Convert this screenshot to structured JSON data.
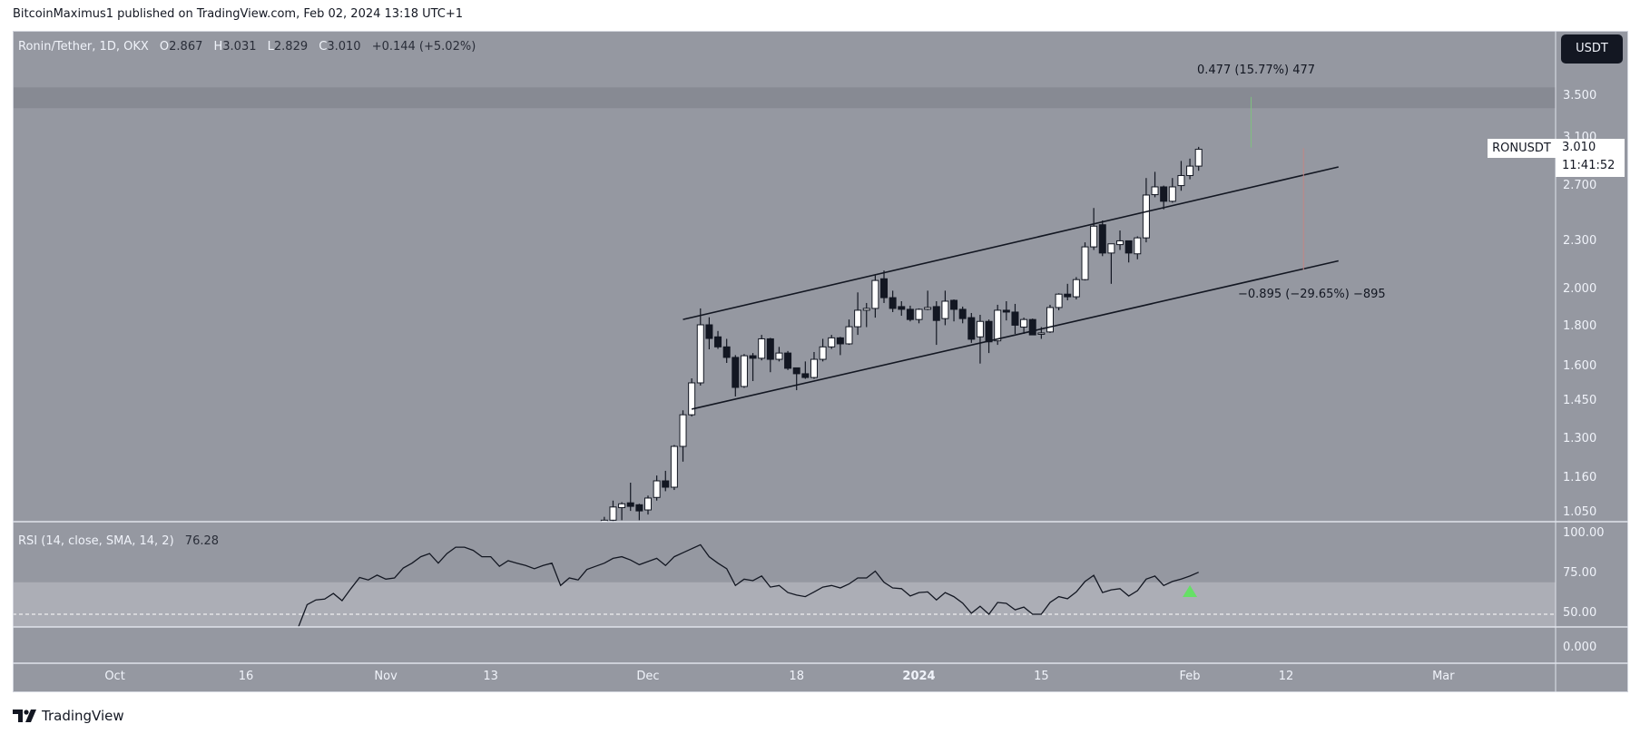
{
  "header": {
    "published": "BitcoinMaximus1 published on TradingView.com, Feb 02, 2024 13:18 UTC+1"
  },
  "legend": {
    "symbol": "Ronin/Tether, 1D, OKX",
    "o_label": "O",
    "o": "2.867",
    "h_label": "H",
    "h": "3.031",
    "l_label": "L",
    "l": "2.829",
    "c_label": "C",
    "c": "3.010",
    "change": "+0.144 (+5.02%)"
  },
  "currency_button": "USDT",
  "symbol_tag": {
    "name": "RONUSDT",
    "price": "3.010",
    "countdown": "11:41:52"
  },
  "measures": {
    "up_text": "0.477 (15.77%) 477",
    "down_text": "−0.895 (−29.65%) −895"
  },
  "rsi_legend": {
    "label": "RSI (14, close, SMA, 14, 2)",
    "value": "76.28"
  },
  "footer": {
    "brand": "TradingView"
  },
  "colors": {
    "bg": "#9598a1",
    "zone": "#878a93",
    "rsi_band": "#acaeb6",
    "candle_dark": "#131722",
    "candle_light": "#ffffff",
    "up_measure": "#7fbf7f",
    "down_measure": "#c08585",
    "signal": "#66e066"
  },
  "chart_data": [
    {
      "type": "candlestick",
      "title": "Ronin/Tether, 1D, OKX",
      "ylabel": "USDT",
      "scale": "log",
      "ylim": [
        1.0,
        3.65
      ],
      "y_ticks": [
        "3.500",
        "3.100",
        "2.700",
        "2.300",
        "2.000",
        "1.800",
        "1.600",
        "1.450",
        "1.300",
        "1.160",
        "1.050"
      ],
      "x_ticks": [
        {
          "label": "Oct",
          "date": "2023-10-01"
        },
        {
          "label": "16",
          "date": "2023-10-16"
        },
        {
          "label": "Nov",
          "date": "2023-11-01"
        },
        {
          "label": "13",
          "date": "2023-11-13"
        },
        {
          "label": "Dec",
          "date": "2023-12-01"
        },
        {
          "label": "18",
          "date": "2023-12-18"
        },
        {
          "label": "2024",
          "date": "2024-01-01",
          "bold": true
        },
        {
          "label": "15",
          "date": "2024-01-15"
        },
        {
          "label": "Feb",
          "date": "2024-02-01"
        },
        {
          "label": "12",
          "date": "2024-02-12"
        },
        {
          "label": "Mar",
          "date": "2024-03-01"
        }
      ],
      "start_date": "2023-11-26",
      "ohlc_fields": [
        "open",
        "high",
        "low",
        "close"
      ],
      "candles": [
        [
          1.0,
          1.04,
          0.98,
          1.03
        ],
        [
          1.03,
          1.09,
          1.02,
          1.07
        ],
        [
          1.068,
          1.085,
          1.03,
          1.08
        ],
        [
          1.083,
          1.148,
          1.058,
          1.072
        ],
        [
          1.077,
          1.08,
          1.03,
          1.058
        ],
        [
          1.061,
          1.106,
          1.047,
          1.098
        ],
        [
          1.1,
          1.172,
          1.09,
          1.154
        ],
        [
          1.154,
          1.188,
          1.12,
          1.133
        ],
        [
          1.133,
          1.28,
          1.124,
          1.275
        ],
        [
          1.275,
          1.415,
          1.22,
          1.397
        ],
        [
          1.397,
          1.552,
          1.39,
          1.532
        ],
        [
          1.532,
          1.9,
          1.52,
          1.812
        ],
        [
          1.812,
          1.852,
          1.688,
          1.742
        ],
        [
          1.75,
          1.78,
          1.69,
          1.7
        ],
        [
          1.7,
          1.74,
          1.623,
          1.649
        ],
        [
          1.649,
          1.66,
          1.473,
          1.512
        ],
        [
          1.516,
          1.665,
          1.51,
          1.657
        ],
        [
          1.657,
          1.67,
          1.54,
          1.645
        ],
        [
          1.645,
          1.76,
          1.635,
          1.74
        ],
        [
          1.74,
          1.745,
          1.58,
          1.64
        ],
        [
          1.64,
          1.7,
          1.63,
          1.67
        ],
        [
          1.67,
          1.68,
          1.59,
          1.598
        ],
        [
          1.6,
          1.6,
          1.5,
          1.573
        ],
        [
          1.573,
          1.63,
          1.55,
          1.556
        ],
        [
          1.556,
          1.675,
          1.55,
          1.64
        ],
        [
          1.64,
          1.74,
          1.63,
          1.7
        ],
        [
          1.7,
          1.76,
          1.69,
          1.745
        ],
        [
          1.745,
          1.75,
          1.66,
          1.715
        ],
        [
          1.715,
          1.84,
          1.71,
          1.802
        ],
        [
          1.802,
          1.99,
          1.76,
          1.89
        ],
        [
          1.89,
          1.93,
          1.8,
          1.9
        ],
        [
          1.9,
          2.09,
          1.85,
          2.06
        ],
        [
          2.07,
          2.12,
          1.93,
          1.96
        ],
        [
          1.96,
          2.0,
          1.88,
          1.9
        ],
        [
          1.91,
          1.94,
          1.86,
          1.895
        ],
        [
          1.895,
          1.915,
          1.83,
          1.84
        ],
        [
          1.84,
          1.9,
          1.82,
          1.895
        ],
        [
          1.895,
          2.0,
          1.89,
          1.905
        ],
        [
          1.91,
          1.94,
          1.71,
          1.835
        ],
        [
          1.845,
          2.0,
          1.81,
          1.94
        ],
        [
          1.945,
          1.95,
          1.83,
          1.895
        ],
        [
          1.895,
          1.91,
          1.82,
          1.845
        ],
        [
          1.85,
          1.875,
          1.72,
          1.738
        ],
        [
          1.75,
          1.865,
          1.62,
          1.83
        ],
        [
          1.83,
          1.84,
          1.67,
          1.725
        ],
        [
          1.73,
          1.92,
          1.71,
          1.89
        ],
        [
          1.89,
          1.94,
          1.835,
          1.88
        ],
        [
          1.88,
          1.925,
          1.765,
          1.81
        ],
        [
          1.8,
          1.85,
          1.765,
          1.84
        ],
        [
          1.84,
          1.845,
          1.76,
          1.76
        ],
        [
          1.765,
          1.8,
          1.74,
          1.77
        ],
        [
          1.775,
          1.92,
          1.77,
          1.905
        ],
        [
          1.905,
          1.985,
          1.89,
          1.98
        ],
        [
          1.98,
          2.04,
          1.945,
          1.965
        ],
        [
          1.965,
          2.08,
          1.95,
          2.065
        ],
        [
          2.065,
          2.3,
          2.06,
          2.27
        ],
        [
          2.27,
          2.54,
          2.25,
          2.41
        ],
        [
          2.42,
          2.45,
          2.21,
          2.23
        ],
        [
          2.23,
          2.29,
          2.04,
          2.29
        ],
        [
          2.285,
          2.38,
          2.25,
          2.31
        ],
        [
          2.31,
          2.31,
          2.17,
          2.23
        ],
        [
          2.225,
          2.34,
          2.19,
          2.33
        ],
        [
          2.33,
          2.77,
          2.3,
          2.637
        ],
        [
          2.64,
          2.82,
          2.62,
          2.7
        ],
        [
          2.7,
          2.71,
          2.53,
          2.59
        ],
        [
          2.59,
          2.77,
          2.58,
          2.7
        ],
        [
          2.71,
          2.91,
          2.67,
          2.79
        ],
        [
          2.79,
          2.93,
          2.76,
          2.867
        ],
        [
          2.867,
          3.031,
          2.829,
          3.01
        ]
      ],
      "drawings": {
        "channel_upper": [
          [
            "2023-12-05",
            1.84
          ],
          [
            "2024-02-18",
            2.86
          ]
        ],
        "channel_lower": [
          [
            "2023-12-06",
            1.42
          ],
          [
            "2024-02-18",
            2.18
          ]
        ],
        "zone": [
          3.39,
          3.6
        ],
        "measure_up": {
          "date": "2024-02-08",
          "from": 3.025,
          "to": 3.502
        },
        "measure_down": {
          "date": "2024-02-14",
          "from": 3.019,
          "to": 2.124
        }
      }
    },
    {
      "type": "line",
      "title": "RSI (14, close, SMA, 14, 2)",
      "ylim": [
        0,
        100
      ],
      "y_ticks": [
        "100.00",
        "75.00",
        "50.00"
      ],
      "extra_tick": "0.000",
      "band": [
        30,
        70
      ],
      "midline": 50,
      "signal_marker": {
        "date": "2024-02-01",
        "shape": "triangle-up"
      },
      "start_date": "2023-10-22",
      "values": [
        42,
        56,
        59,
        59.5,
        63,
        58.5,
        66,
        73,
        71.5,
        74.5,
        72,
        72.7,
        79,
        82,
        86,
        88,
        82,
        88,
        92,
        92,
        90,
        86,
        86,
        80,
        83.5,
        82,
        80.5,
        78.5,
        80.5,
        82,
        68,
        72.7,
        71.5,
        78,
        80,
        82,
        85,
        86,
        84,
        81,
        83,
        85,
        80.5,
        86,
        88.5,
        91,
        93.5,
        86,
        82,
        78.5,
        68,
        72,
        71,
        74,
        67,
        68,
        63.6,
        62,
        61,
        64,
        67,
        68,
        66.5,
        69,
        72.7,
        72.7,
        77,
        70,
        66.5,
        66,
        61.4,
        63.6,
        64,
        59,
        63.6,
        61,
        57,
        50.6,
        55,
        50,
        57.4,
        56.8,
        52.8,
        54.5,
        50,
        50,
        57.4,
        61,
        59.7,
        64,
        70.5,
        74.4,
        63.6,
        65.3,
        66,
        61.4,
        64.8,
        72,
        73.9,
        68,
        70.5,
        72,
        73.9,
        76.28
      ]
    }
  ]
}
